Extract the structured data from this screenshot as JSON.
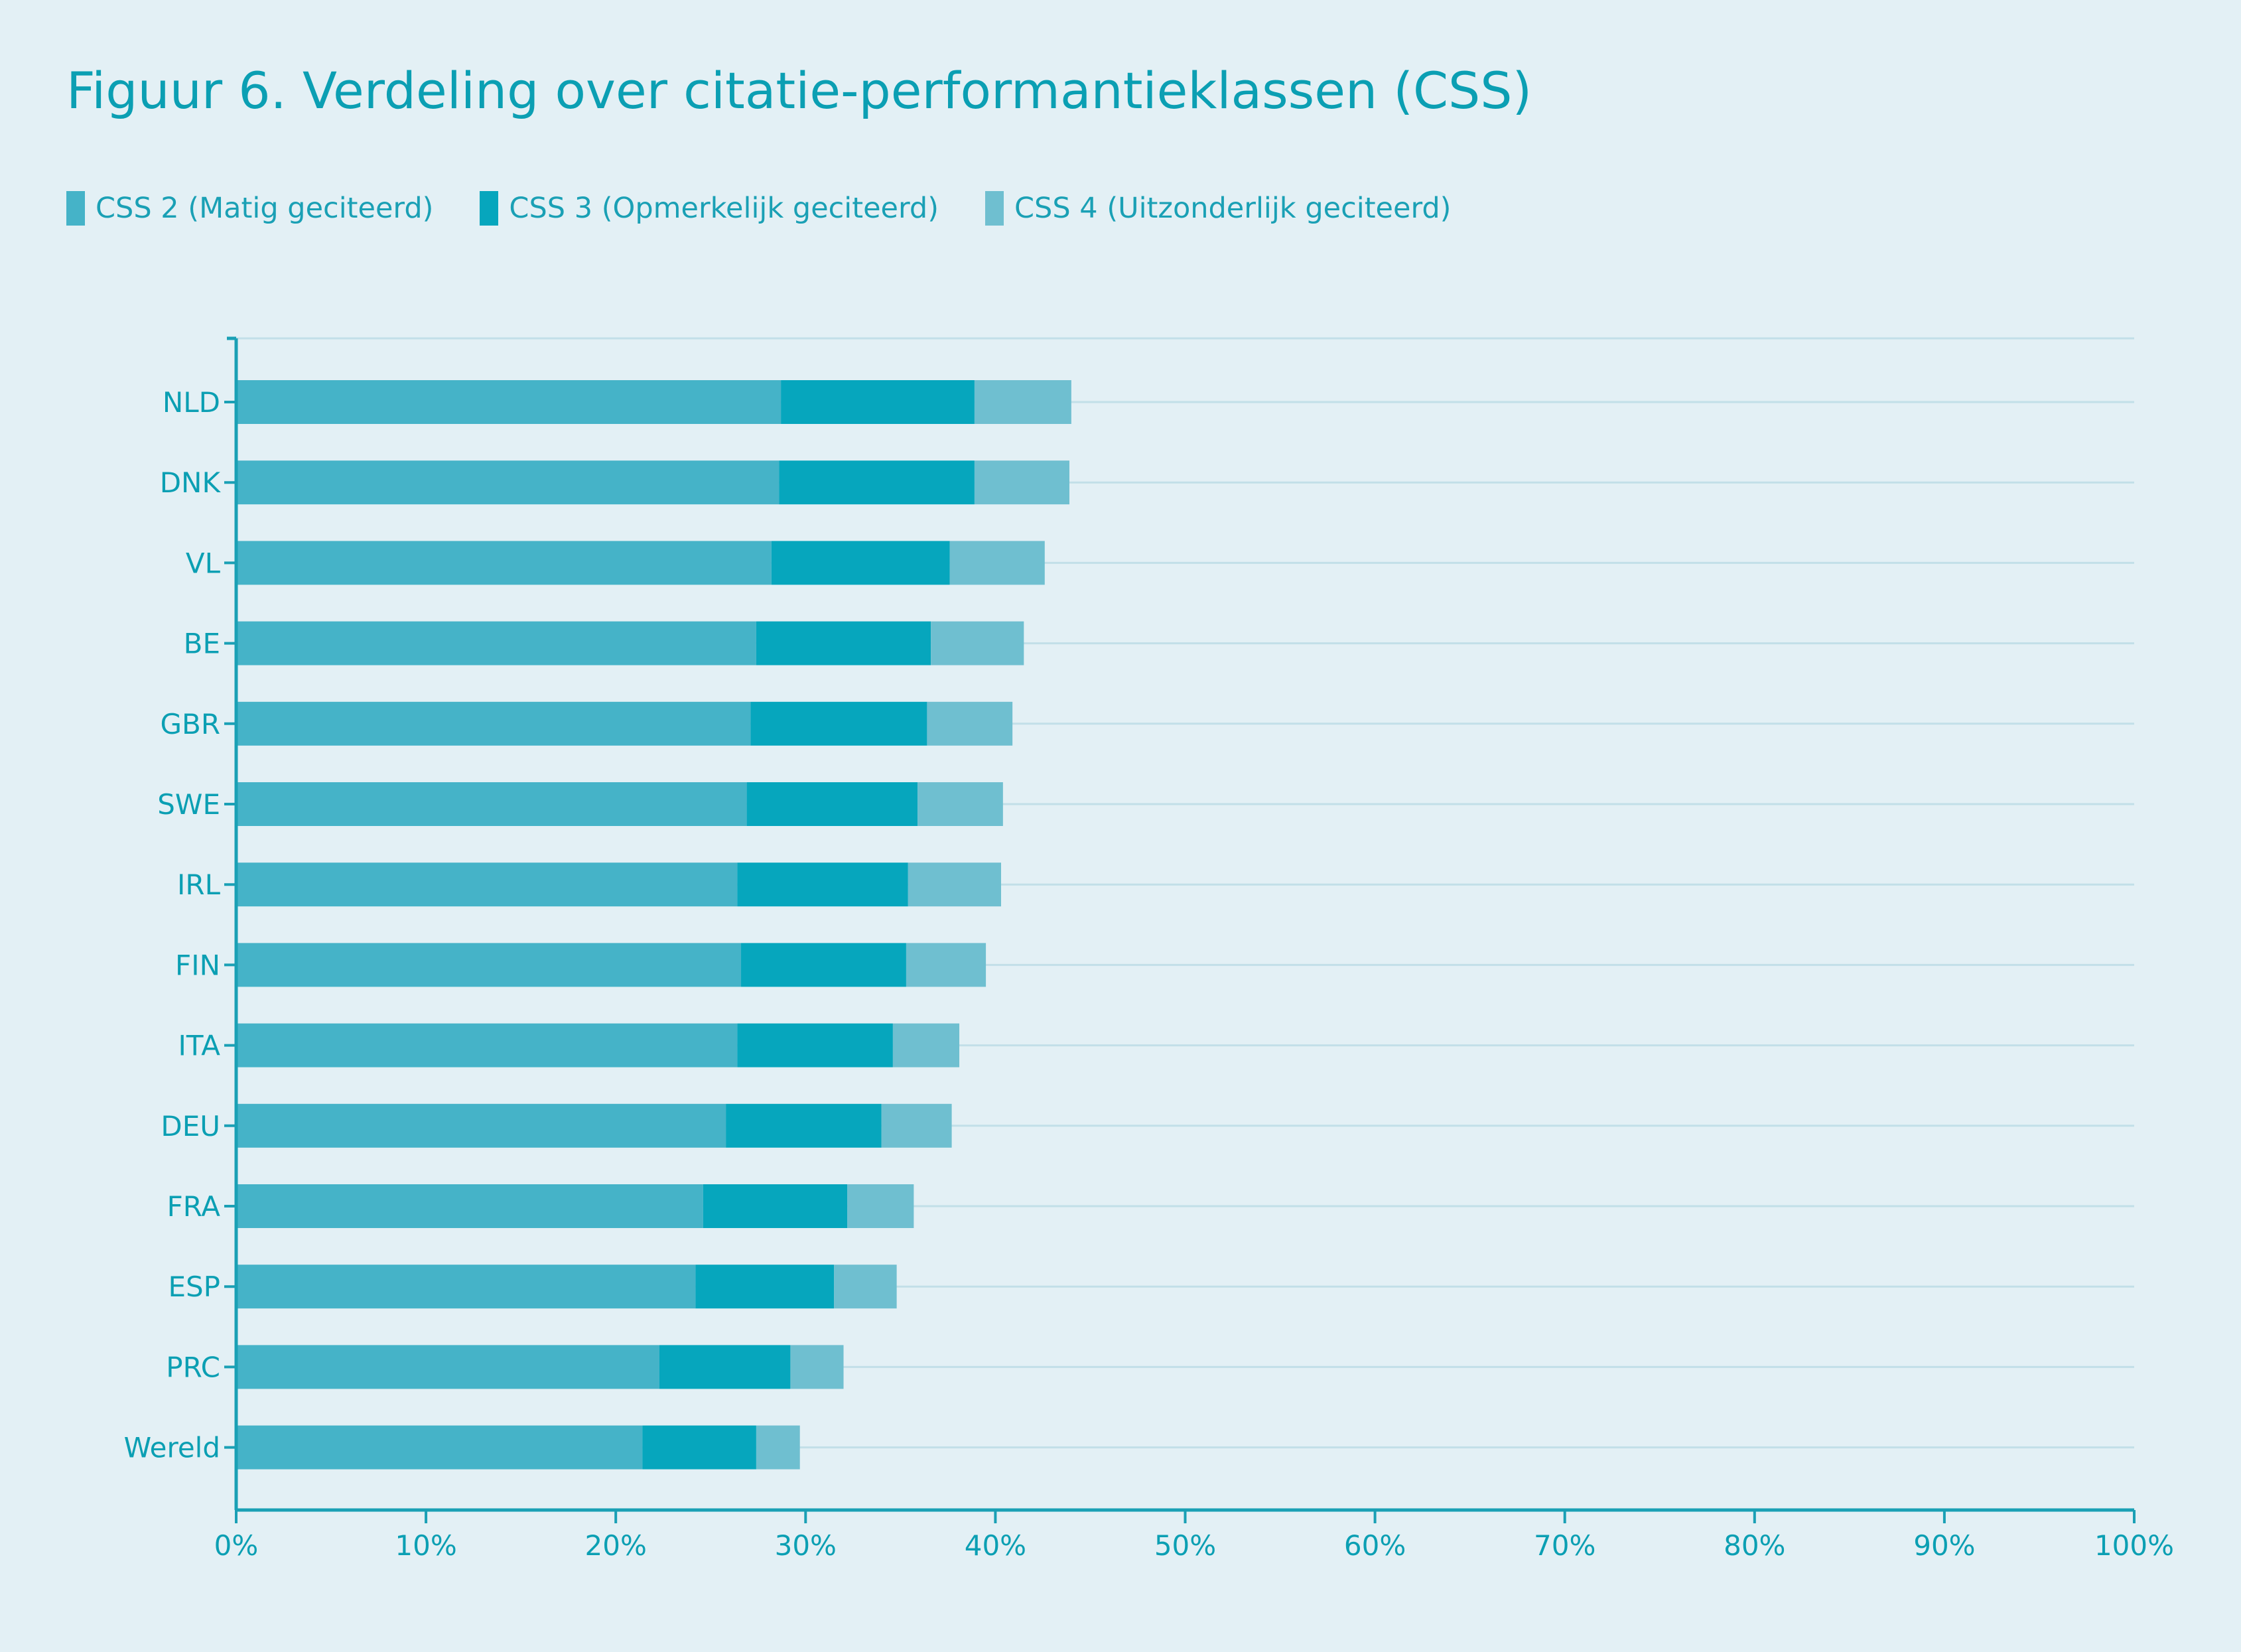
{
  "chart_data": {
    "type": "bar",
    "orientation": "horizontal",
    "stacked": true,
    "title": "Figuur 6. Verdeling over citatie-performantieklassen (CSS)",
    "categories": [
      "NLD",
      "DNK",
      "VL",
      "BE",
      "GBR",
      "SWE",
      "IRL",
      "FIN",
      "ITA",
      "DEU",
      "FRA",
      "ESP",
      "PRC",
      "Wereld"
    ],
    "series": [
      {
        "name": "CSS 2 (Matig geciteerd)",
        "color": "#45b3c8",
        "values": [
          28.7,
          28.6,
          28.2,
          27.4,
          27.1,
          26.9,
          26.4,
          26.6,
          26.4,
          25.8,
          24.6,
          24.2,
          22.3,
          21.4
        ]
      },
      {
        "name": "CSS 3 (Opmerkelijk geciteerd)",
        "color": "#06a6bd",
        "values": [
          10.2,
          10.3,
          9.4,
          9.2,
          9.3,
          9.0,
          9.0,
          8.7,
          8.2,
          8.2,
          7.6,
          7.3,
          6.9,
          6.0
        ]
      },
      {
        "name": "CSS 4 (Uitzonderlijk geciteerd)",
        "color": "#6fbfd0",
        "values": [
          5.1,
          5.0,
          5.0,
          4.9,
          4.5,
          4.5,
          4.9,
          4.2,
          3.5,
          3.7,
          3.5,
          3.3,
          2.8,
          2.3
        ]
      }
    ],
    "xlim": [
      0,
      100
    ],
    "xticks": [
      "0%",
      "10%",
      "20%",
      "30%",
      "40%",
      "50%",
      "60%",
      "70%",
      "80%",
      "90%",
      "100%"
    ],
    "xlabel": "",
    "ylabel": "",
    "grid": true,
    "legend_position": "top-left"
  }
}
